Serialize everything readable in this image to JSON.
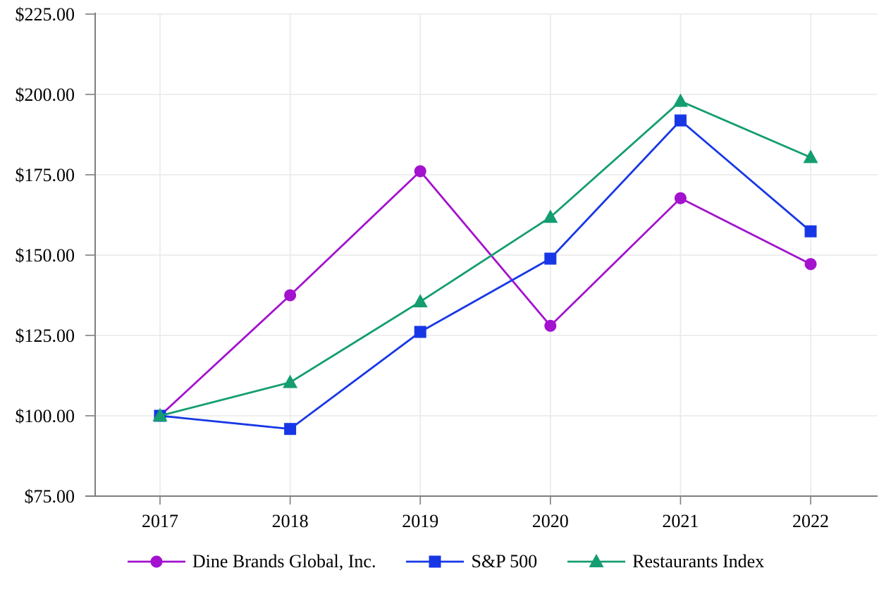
{
  "chart_data": {
    "type": "line",
    "title": "",
    "xlabel": "",
    "ylabel": "",
    "x": [
      "2017",
      "2018",
      "2019",
      "2020",
      "2021",
      "2022"
    ],
    "ylim": [
      75,
      225
    ],
    "y_ticks": [
      {
        "value": 225,
        "label": "$225.00"
      },
      {
        "value": 200,
        "label": "$200.00"
      },
      {
        "value": 175,
        "label": "$175.00"
      },
      {
        "value": 150,
        "label": "$150.00"
      },
      {
        "value": 125,
        "label": "$125.00"
      },
      {
        "value": 100,
        "label": "$100.00"
      },
      {
        "value": 75,
        "label": "$75.00"
      }
    ],
    "grid": true,
    "legend_position": "bottom",
    "series": [
      {
        "name": "Dine Brands Global, Inc.",
        "marker": "circle",
        "color": "#A312CE",
        "values": [
          100,
          137.5,
          176.1,
          128.0,
          167.7,
          147.2
        ]
      },
      {
        "name": "S&P 500",
        "marker": "square",
        "color": "#1737E6",
        "values": [
          100,
          95.9,
          126.1,
          148.9,
          191.9,
          157.4
        ]
      },
      {
        "name": "Restaurants Index",
        "marker": "triangle",
        "color": "#149D70",
        "values": [
          100,
          110.4,
          135.5,
          161.8,
          197.9,
          180.4
        ]
      }
    ],
    "colors": {
      "axis": "#7F7F7F",
      "gridline": "#E9E9E9",
      "text": "#000000",
      "background": "#FFFFFF"
    }
  }
}
